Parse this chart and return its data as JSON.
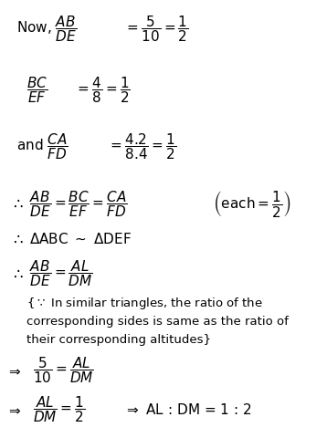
{
  "bg_color": "#ffffff",
  "text_color": "#000000",
  "figsize": [
    3.58,
    4.8
  ],
  "dpi": 100
}
